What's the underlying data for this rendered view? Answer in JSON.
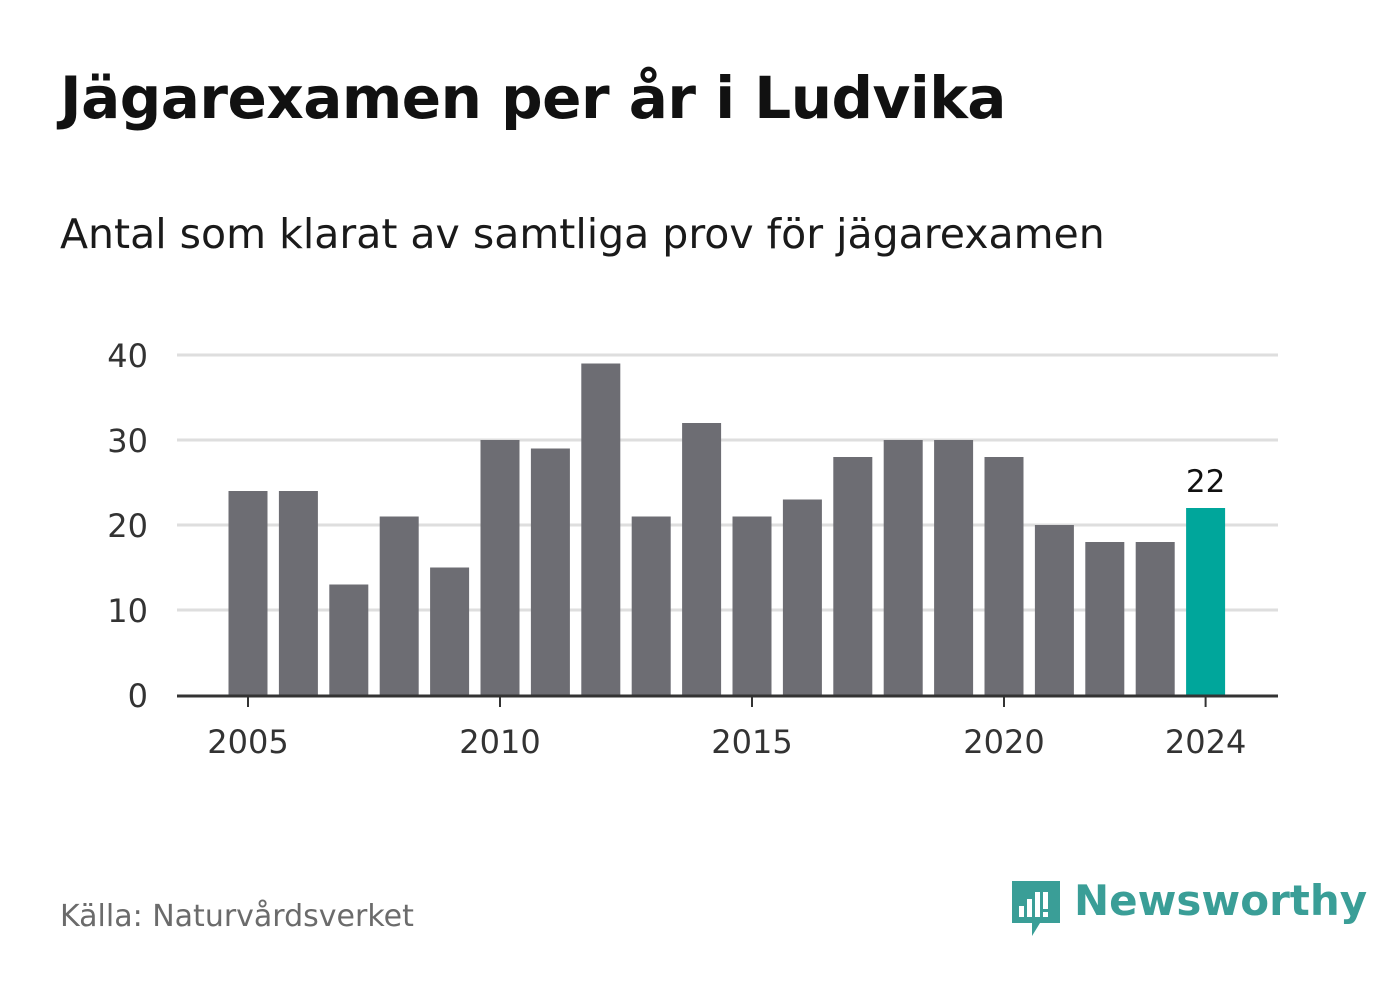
{
  "title": "Jägarexamen per år i Ludvika",
  "subtitle": "Antal som klarat av samtliga prov för jägarexamen",
  "source": "Källa: Naturvårdsverket",
  "brand": "Newsworthy",
  "colors": {
    "bar": "#6d6d73",
    "highlight": "#00a69b",
    "grid": "#dedede",
    "axis": "#333333",
    "brand": "#3a9e97"
  },
  "chart_data": {
    "type": "bar",
    "x": [
      2005,
      2006,
      2007,
      2008,
      2009,
      2010,
      2011,
      2012,
      2013,
      2014,
      2015,
      2016,
      2017,
      2018,
      2019,
      2020,
      2021,
      2022,
      2023,
      2024
    ],
    "values": [
      24,
      24,
      13,
      21,
      15,
      30,
      29,
      39,
      21,
      32,
      21,
      23,
      28,
      30,
      30,
      28,
      20,
      18,
      18,
      22
    ],
    "ylim": [
      0,
      40
    ],
    "yticks": [
      0,
      10,
      20,
      30,
      40
    ],
    "xticks": [
      2005,
      2010,
      2015,
      2020,
      2024
    ],
    "highlight": {
      "x": 2024,
      "value": 22,
      "label": "22"
    },
    "grid": true
  }
}
